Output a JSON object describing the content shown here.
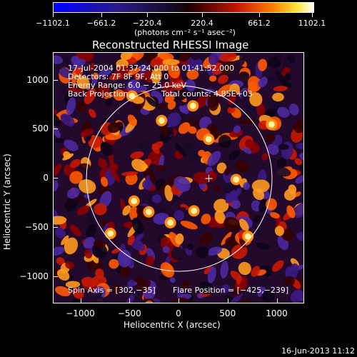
{
  "colorbar": {
    "ticks": [
      "−1102.1",
      "−661.2",
      "−220.4",
      "220.4",
      "661.2",
      "1102.1"
    ],
    "units": "(photons cm⁻² s⁻¹ asec⁻²)"
  },
  "chart_data": {
    "type": "heatmap",
    "title": "Reconstructed RHESSI Image",
    "xlabel": "Heliocentric X (arcsec)",
    "ylabel": "Heliocentric Y (arcsec)",
    "xlim": [
      -1280,
      1280
    ],
    "ylim": [
      -1280,
      1280
    ],
    "xticks": [
      "−1000",
      "−500",
      "0",
      "500",
      "1000"
    ],
    "yticks": [
      "1000",
      "500",
      "0",
      "−500",
      "−1000"
    ],
    "xtick_values": [
      -1000,
      -500,
      0,
      500,
      1000
    ],
    "ytick_values": [
      1000,
      500,
      0,
      -500,
      -1000
    ],
    "color_range": [
      -1102.1,
      1102.1
    ],
    "solar_limb_radius": 945,
    "marker": {
      "x": 302,
      "y": 0
    },
    "bright_spots": [
      {
        "x": -700,
        "y": -560
      },
      {
        "x": -460,
        "y": -230
      },
      {
        "x": -310,
        "y": -340
      },
      {
        "x": 150,
        "y": -330
      },
      {
        "x": -180,
        "y": 590
      },
      {
        "x": 140,
        "y": 740
      },
      {
        "x": 580,
        "y": -10
      },
      {
        "x": 300,
        "y": 400
      },
      {
        "x": 940,
        "y": 550
      },
      {
        "x": -480,
        "y": 840
      },
      {
        "x": -90,
        "y": -450
      },
      {
        "x": 700,
        "y": -590
      }
    ]
  },
  "annotations": {
    "time_range": "17-Jul-2004 01:37:24.000 to 01:41:52.000",
    "detectors": "Detectors: 7F 8F 9F, Att 0",
    "energy_range": "Energy Range: 6.0 − 25.0 keV",
    "method": "Back Projection",
    "total_counts": "Total counts: 4.85E+03",
    "spin_axis": "Spin Axis = [302,−35]",
    "flare_position": "Flare Position = [−425,−239]"
  },
  "footer": {
    "date": "16-Jun-2013 11:12"
  }
}
